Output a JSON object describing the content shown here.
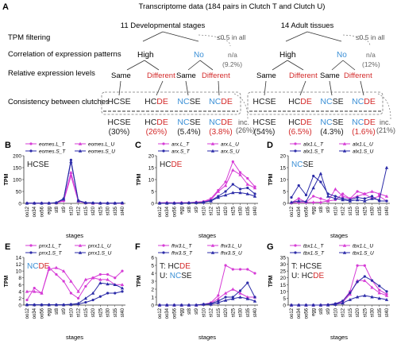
{
  "panelA": {
    "letter": "A",
    "header": "Transcriptome data (184 pairs in Clutch T and Clutch U)",
    "rowLabels": [
      "TPM filtering",
      "Correlation of expression patterns",
      "Relative expression levels",
      "Consistency between clutches"
    ],
    "dev": {
      "title": "11 Developmental stages",
      "filterNote": "≤0.5 in all",
      "filterPct": "n/a",
      "filterPctVal": "(9.2%)",
      "high": "High",
      "no": "No",
      "noPct": "n/a",
      "noPctVal": "(12%)",
      "same": "Same",
      "different": "Different",
      "categories": [
        {
          "pre": "HC",
          "suf": "SE",
          "preColor": "black",
          "sufColor": "black",
          "pct": "(30%)",
          "pctColor": "#222222"
        },
        {
          "pre": "HC",
          "suf": "DE",
          "preColor": "black",
          "sufColor": "red",
          "pct": "(26%)",
          "pctColor": "#d32a2a"
        },
        {
          "pre": "NC",
          "suf": "SE",
          "preColor": "blue",
          "sufColor": "black",
          "pct": "(5.4%)",
          "pctColor": "#222222"
        },
        {
          "pre": "NC",
          "suf": "DE",
          "preColor": "blue",
          "sufColor": "red",
          "pct": "(3.8%)",
          "pctColor": "#d32a2a"
        }
      ],
      "inc": "inc.",
      "incPct": "(26%)"
    },
    "adult": {
      "title": "14 Adult tissues",
      "filterNote": "≤0.5 in all",
      "high": "High",
      "no": "No",
      "same": "Same",
      "different": "Different",
      "categories": [
        {
          "pre": "HC",
          "suf": "SE",
          "preColor": "black",
          "sufColor": "black",
          "pct": "(54%)",
          "pctColor": "#222222"
        },
        {
          "pre": "HC",
          "suf": "DE",
          "preColor": "black",
          "sufColor": "red",
          "pct": "(6.5%)",
          "pctColor": "#d32a2a"
        },
        {
          "pre": "NC",
          "suf": "SE",
          "preColor": "blue",
          "sufColor": "black",
          "pct": "(4.3%)",
          "pctColor": "#222222"
        },
        {
          "pre": "NC",
          "suf": "DE",
          "preColor": "blue",
          "sufColor": "red",
          "pct": "(1.6%)",
          "pctColor": "#d32a2a"
        }
      ],
      "inc": "inc.",
      "incPct": "(21%)"
    },
    "colors": {
      "blue": "#3a8fd6",
      "red": "#d32a2a",
      "black": "#222222"
    }
  },
  "chart_data": [
    {
      "id": "B",
      "type": "line",
      "ylabel": "TPM",
      "xlabel": "stages",
      "ylim": [
        0,
        200
      ],
      "yticks": [
        0,
        50,
        100,
        150,
        200
      ],
      "categories": [
        "oo12",
        "oo34",
        "oo56",
        "egg",
        "st8",
        "st9",
        "st10",
        "st12",
        "st15",
        "st20",
        "st25",
        "st30",
        "st35",
        "st40"
      ],
      "annotation": [
        {
          "text": "HC",
          "c": "black"
        },
        {
          "text": "SE",
          "c": "black"
        }
      ],
      "series": [
        {
          "name": "eomes.L_T",
          "color": "#d63cd6",
          "marker": "circle",
          "values": [
            1,
            1,
            1,
            1,
            2,
            10,
            115,
            8,
            2,
            1,
            1,
            1,
            1,
            1
          ]
        },
        {
          "name": "eomes.L_U",
          "color": "#d63cd6",
          "marker": "triangle",
          "values": [
            1,
            1,
            1,
            1,
            2,
            14,
            130,
            10,
            2,
            1,
            1,
            1,
            1,
            1
          ]
        },
        {
          "name": "eomes.S_T",
          "color": "#2b2ba8",
          "marker": "circle",
          "values": [
            1,
            1,
            1,
            1,
            3,
            20,
            182,
            12,
            3,
            2,
            1,
            1,
            1,
            2
          ]
        },
        {
          "name": "eomes.S_U",
          "color": "#2b2ba8",
          "marker": "triangle",
          "values": [
            1,
            1,
            1,
            1,
            3,
            18,
            175,
            11,
            3,
            2,
            1,
            1,
            1,
            2
          ]
        }
      ]
    },
    {
      "id": "C",
      "type": "line",
      "ylabel": "TPM",
      "xlabel": "stages",
      "ylim": [
        0,
        20
      ],
      "yticks": [
        0,
        5,
        10,
        15,
        20
      ],
      "categories": [
        "oo12",
        "oo34",
        "oo56",
        "egg",
        "st8",
        "st9",
        "st10",
        "st12",
        "st15",
        "st20",
        "st25",
        "st30",
        "st35",
        "st40"
      ],
      "annotation": [
        {
          "text": "HC",
          "c": "black"
        },
        {
          "text": "DE",
          "c": "red"
        }
      ],
      "series": [
        {
          "name": "arx.L_T",
          "color": "#d63cd6",
          "marker": "circle",
          "values": [
            0.2,
            0.3,
            0.2,
            0.3,
            0.3,
            0.5,
            0.8,
            2,
            5.5,
            9,
            17.5,
            13,
            10.5,
            7
          ]
        },
        {
          "name": "arx.L_U",
          "color": "#d63cd6",
          "marker": "triangle",
          "values": [
            0.2,
            0.3,
            0.2,
            0.3,
            0.3,
            0.5,
            0.7,
            1.5,
            5,
            7.5,
            14,
            12,
            8,
            6.5
          ]
        },
        {
          "name": "arx.S_T",
          "color": "#2b2ba8",
          "marker": "circle",
          "values": [
            0.1,
            0.1,
            0.1,
            0.1,
            0.2,
            0.3,
            0.5,
            1.2,
            3,
            5,
            8,
            6,
            6.5,
            4
          ]
        },
        {
          "name": "arx.S_U",
          "color": "#2b2ba8",
          "marker": "triangle",
          "values": [
            0.1,
            0.1,
            0.1,
            0.1,
            0.2,
            0.3,
            0.4,
            1,
            2.5,
            3.5,
            4.5,
            4.5,
            4,
            3
          ]
        }
      ]
    },
    {
      "id": "D",
      "type": "line",
      "ylabel": "TPM",
      "xlabel": "stages",
      "ylim": [
        0,
        20
      ],
      "yticks": [
        0,
        5,
        10,
        15,
        20
      ],
      "categories": [
        "oo12",
        "oo34",
        "oo56",
        "egg",
        "st8",
        "st9",
        "st10",
        "st12",
        "st15",
        "st20",
        "st25",
        "st30",
        "st35",
        "st40"
      ],
      "annotation": [
        {
          "text": "NC",
          "c": "blue"
        },
        {
          "text": "SE",
          "c": "black"
        }
      ],
      "series": [
        {
          "name": "alx1.L_T",
          "color": "#d63cd6",
          "marker": "circle",
          "values": [
            0.3,
            2,
            0.5,
            3,
            2,
            1,
            1.5,
            4,
            2,
            5,
            4,
            2,
            3,
            1
          ]
        },
        {
          "name": "alx1.L_U",
          "color": "#d63cd6",
          "marker": "triangle",
          "values": [
            0.3,
            0.5,
            0.4,
            0.5,
            0.5,
            1,
            6,
            3,
            2,
            3,
            4,
            5,
            4,
            3
          ]
        },
        {
          "name": "alx1.S_T",
          "color": "#2b2ba8",
          "marker": "circle",
          "values": [
            2.5,
            7.5,
            3.5,
            11.5,
            9,
            4,
            3,
            2,
            1.5,
            2.5,
            2,
            3,
            1,
            1
          ]
        },
        {
          "name": "alx1.S_U",
          "color": "#2b2ba8",
          "marker": "triangle",
          "values": [
            0.5,
            1,
            0.8,
            6.5,
            12.5,
            3,
            2,
            1.5,
            1,
            1.5,
            1,
            2,
            1.5,
            15
          ]
        }
      ]
    },
    {
      "id": "E",
      "type": "line",
      "ylabel": "TPM",
      "xlabel": "stages",
      "ylim": [
        0,
        14
      ],
      "yticks": [
        0,
        2,
        4,
        6,
        8,
        10,
        12,
        14
      ],
      "categories": [
        "oo12",
        "oo34",
        "oo56",
        "egg",
        "st8",
        "st9",
        "st10",
        "st12",
        "st15",
        "st20",
        "st25",
        "st30",
        "st35",
        "st40"
      ],
      "annotation": [
        {
          "text": "NC",
          "c": "blue"
        },
        {
          "text": "DE",
          "c": "red"
        }
      ],
      "series": [
        {
          "name": "prrx1.L_T",
          "color": "#d63cd6",
          "marker": "circle",
          "values": [
            1.5,
            5,
            3.5,
            11,
            9,
            7,
            3.5,
            2,
            5.5,
            8,
            9,
            9,
            8,
            10
          ]
        },
        {
          "name": "prrx1.L_U",
          "color": "#d63cd6",
          "marker": "triangle",
          "values": [
            4,
            4,
            3.5,
            10.5,
            11,
            10,
            7,
            4,
            7.5,
            8,
            7.5,
            7.5,
            6,
            6
          ]
        },
        {
          "name": "prrx1.S_T",
          "color": "#2b2ba8",
          "marker": "circle",
          "values": [
            0.1,
            0.1,
            0.1,
            0.1,
            0.1,
            0.1,
            0.2,
            0.3,
            0.8,
            1.5,
            2.5,
            3.5,
            3.5,
            4
          ]
        },
        {
          "name": "prrx1.S_U",
          "color": "#2b2ba8",
          "marker": "triangle",
          "values": [
            0.1,
            0.1,
            0.1,
            0.1,
            0.1,
            0.1,
            0.2,
            0.5,
            2,
            3.5,
            6.5,
            6.2,
            6,
            5
          ]
        }
      ]
    },
    {
      "id": "F",
      "type": "line",
      "ylabel": "TPM",
      "xlabel": "stages",
      "ylim": [
        0,
        6
      ],
      "yticks": [
        0,
        1,
        2,
        3,
        4,
        5,
        6
      ],
      "categories": [
        "oo12",
        "oo34",
        "oo56",
        "egg",
        "st8",
        "st9",
        "st10",
        "st12",
        "st15",
        "st20",
        "st25",
        "st30",
        "st35",
        "st40"
      ],
      "annotation": [
        {
          "text": "T: HC",
          "c": "black"
        },
        {
          "text": "DE",
          "c": "red"
        }
      ],
      "annotation2": [
        {
          "text": "U: ",
          "c": "black"
        },
        {
          "text": "NC",
          "c": "blue"
        },
        {
          "text": "SE",
          "c": "black"
        }
      ],
      "series": [
        {
          "name": "fhx3.L_T",
          "color": "#d63cd6",
          "marker": "circle",
          "values": [
            0,
            0,
            0,
            0,
            0,
            0,
            0.1,
            0.3,
            1.2,
            5,
            4.5,
            4.5,
            4.5,
            4
          ]
        },
        {
          "name": "fhx3.L_U",
          "color": "#d63cd6",
          "marker": "triangle",
          "values": [
            0,
            0,
            0,
            0,
            0,
            0,
            0.1,
            0.2,
            0.8,
            1.5,
            2,
            1.5,
            1,
            1
          ]
        },
        {
          "name": "fhx3.S_T",
          "color": "#2b2ba8",
          "marker": "circle",
          "values": [
            0,
            0,
            0,
            0,
            0,
            0,
            0.1,
            0.2,
            0.5,
            1,
            1,
            1.8,
            2.8,
            1
          ]
        },
        {
          "name": "fhx3.S_U",
          "color": "#2b2ba8",
          "marker": "triangle",
          "values": [
            0,
            0,
            0,
            0,
            0,
            0,
            0.1,
            0.1,
            0.3,
            0.6,
            0.8,
            1,
            0.8,
            0.5
          ]
        }
      ]
    },
    {
      "id": "G",
      "type": "line",
      "ylabel": "TPM",
      "xlabel": "stages",
      "ylim": [
        0,
        35
      ],
      "yticks": [
        0,
        5,
        10,
        15,
        20,
        25,
        30,
        35
      ],
      "categories": [
        "oo12",
        "oo34",
        "oo56",
        "egg",
        "st8",
        "st9",
        "st10",
        "st12",
        "st15",
        "st20",
        "st25",
        "st30",
        "st35",
        "st40"
      ],
      "annotation": [
        {
          "text": "T: HC",
          "c": "black"
        },
        {
          "text": "SE",
          "c": "black"
        }
      ],
      "annotation2": [
        {
          "text": "U: HC",
          "c": "black"
        },
        {
          "text": "DE",
          "c": "red"
        }
      ],
      "series": [
        {
          "name": "tbx1.L_T",
          "color": "#d63cd6",
          "marker": "circle",
          "values": [
            0,
            0,
            0,
            0,
            0,
            0.2,
            1,
            3,
            10,
            29,
            29,
            18,
            11,
            8
          ]
        },
        {
          "name": "tbx1.L_U",
          "color": "#d63cd6",
          "marker": "triangle",
          "values": [
            0,
            0,
            0,
            0,
            0,
            0.2,
            0.8,
            2,
            8,
            18,
            18,
            13,
            9,
            7
          ]
        },
        {
          "name": "tbx1.S_T",
          "color": "#2b2ba8",
          "marker": "circle",
          "values": [
            0,
            0,
            0,
            0,
            0,
            0.2,
            1,
            3,
            9,
            17,
            21,
            18,
            14,
            10
          ]
        },
        {
          "name": "tbx1.S_U",
          "color": "#2b2ba8",
          "marker": "triangle",
          "values": [
            0,
            0,
            0,
            0,
            0,
            0.1,
            0.5,
            1.5,
            4,
            6,
            7,
            6,
            5,
            4
          ]
        }
      ]
    }
  ]
}
